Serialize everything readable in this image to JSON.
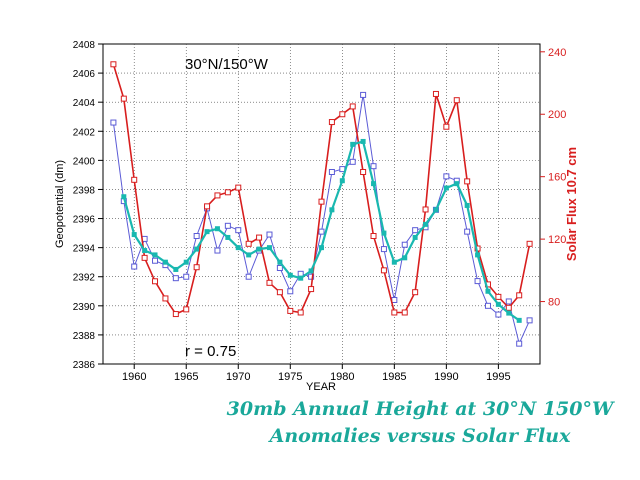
{
  "chart_data": {
    "type": "line",
    "annotation_location": "30°N/150°W",
    "annotation_r": "r = 0.75",
    "xlabel": "YEAR",
    "ylabel_left": "Geopotential (dm)",
    "ylabel_right": "Solar Flux 10.7 cm",
    "xlim": [
      1957,
      1999
    ],
    "ylim_left": [
      2386,
      2408
    ],
    "ylim_right": [
      40,
      245
    ],
    "x_ticks": [
      1960,
      1965,
      1970,
      1975,
      1980,
      1985,
      1990,
      1995
    ],
    "y_ticks_left": [
      2386,
      2388,
      2390,
      2392,
      2394,
      2396,
      2398,
      2400,
      2402,
      2404,
      2406,
      2408
    ],
    "y_ticks_right": [
      80,
      120,
      160,
      200,
      240
    ],
    "grid": true,
    "series": [
      {
        "axis": "left",
        "color": "#5b5bd6",
        "marker": "square-open",
        "x": [
          1958,
          1959,
          1960,
          1961,
          1962,
          1963,
          1964,
          1965,
          1966,
          1967,
          1968,
          1969,
          1970,
          1971,
          1972,
          1973,
          1974,
          1975,
          1976,
          1977,
          1978,
          1979,
          1980,
          1981,
          1982,
          1983,
          1984,
          1985,
          1986,
          1987,
          1988,
          1989,
          1990,
          1991,
          1992,
          1993,
          1994,
          1995,
          1996,
          1997,
          1998
        ],
        "y": [
          2402.6,
          2397.2,
          2392.7,
          2394.6,
          2393.1,
          2392.8,
          2391.9,
          2392.0,
          2394.8,
          2396.7,
          2393.8,
          2395.5,
          2395.2,
          2392.0,
          2393.8,
          2394.9,
          2392.6,
          2391.0,
          2392.2,
          2392.0,
          2395.1,
          2399.2,
          2399.4,
          2399.9,
          2404.5,
          2399.6,
          2393.9,
          2390.4,
          2394.2,
          2395.2,
          2395.4,
          2396.6,
          2398.9,
          2398.6,
          2395.1,
          2391.7,
          2390.0,
          2389.4,
          2390.3,
          2387.4,
          2389.0
        ]
      },
      {
        "axis": "left",
        "color": "#19b8b0",
        "marker": "square-filled",
        "x": [
          1959,
          1960,
          1961,
          1962,
          1963,
          1964,
          1965,
          1966,
          1967,
          1968,
          1969,
          1970,
          1971,
          1972,
          1973,
          1974,
          1975,
          1976,
          1977,
          1978,
          1979,
          1980,
          1981,
          1982,
          1983,
          1984,
          1985,
          1986,
          1987,
          1988,
          1989,
          1990,
          1991,
          1992,
          1993,
          1994,
          1995,
          1996,
          1997
        ],
        "y": [
          2397.5,
          2394.9,
          2393.8,
          2393.5,
          2393.0,
          2392.5,
          2393.0,
          2393.9,
          2395.1,
          2395.3,
          2394.7,
          2394.0,
          2393.5,
          2393.9,
          2394.0,
          2393.0,
          2392.1,
          2391.9,
          2392.4,
          2394.0,
          2396.6,
          2398.6,
          2401.1,
          2401.3,
          2398.4,
          2395.0,
          2393.0,
          2393.3,
          2394.7,
          2395.6,
          2396.6,
          2398.1,
          2398.4,
          2396.9,
          2393.5,
          2391.0,
          2390.1,
          2389.5,
          2389.0
        ]
      },
      {
        "axis": "right",
        "color": "#d81e1e",
        "marker": "square-open",
        "x": [
          1958,
          1959,
          1960,
          1961,
          1962,
          1963,
          1964,
          1965,
          1966,
          1967,
          1968,
          1969,
          1970,
          1971,
          1972,
          1973,
          1974,
          1975,
          1976,
          1977,
          1978,
          1979,
          1980,
          1981,
          1982,
          1983,
          1984,
          1985,
          1986,
          1987,
          1988,
          1989,
          1990,
          1991,
          1992,
          1993,
          1994,
          1995,
          1996,
          1997,
          1998
        ],
        "y": [
          232,
          210,
          158,
          108,
          93,
          82,
          72,
          75,
          102,
          141,
          148,
          150,
          153,
          117,
          121,
          92,
          86,
          74,
          73,
          88,
          144,
          195,
          200,
          205,
          163,
          122,
          100,
          73,
          73,
          86,
          139,
          213,
          192,
          209,
          157,
          114,
          91,
          83,
          76,
          84,
          117
        ]
      }
    ]
  },
  "caption": {
    "line1": "30mb Annual Height at 30°N 150°W",
    "line2": "Anomalies versus Solar Flux"
  }
}
